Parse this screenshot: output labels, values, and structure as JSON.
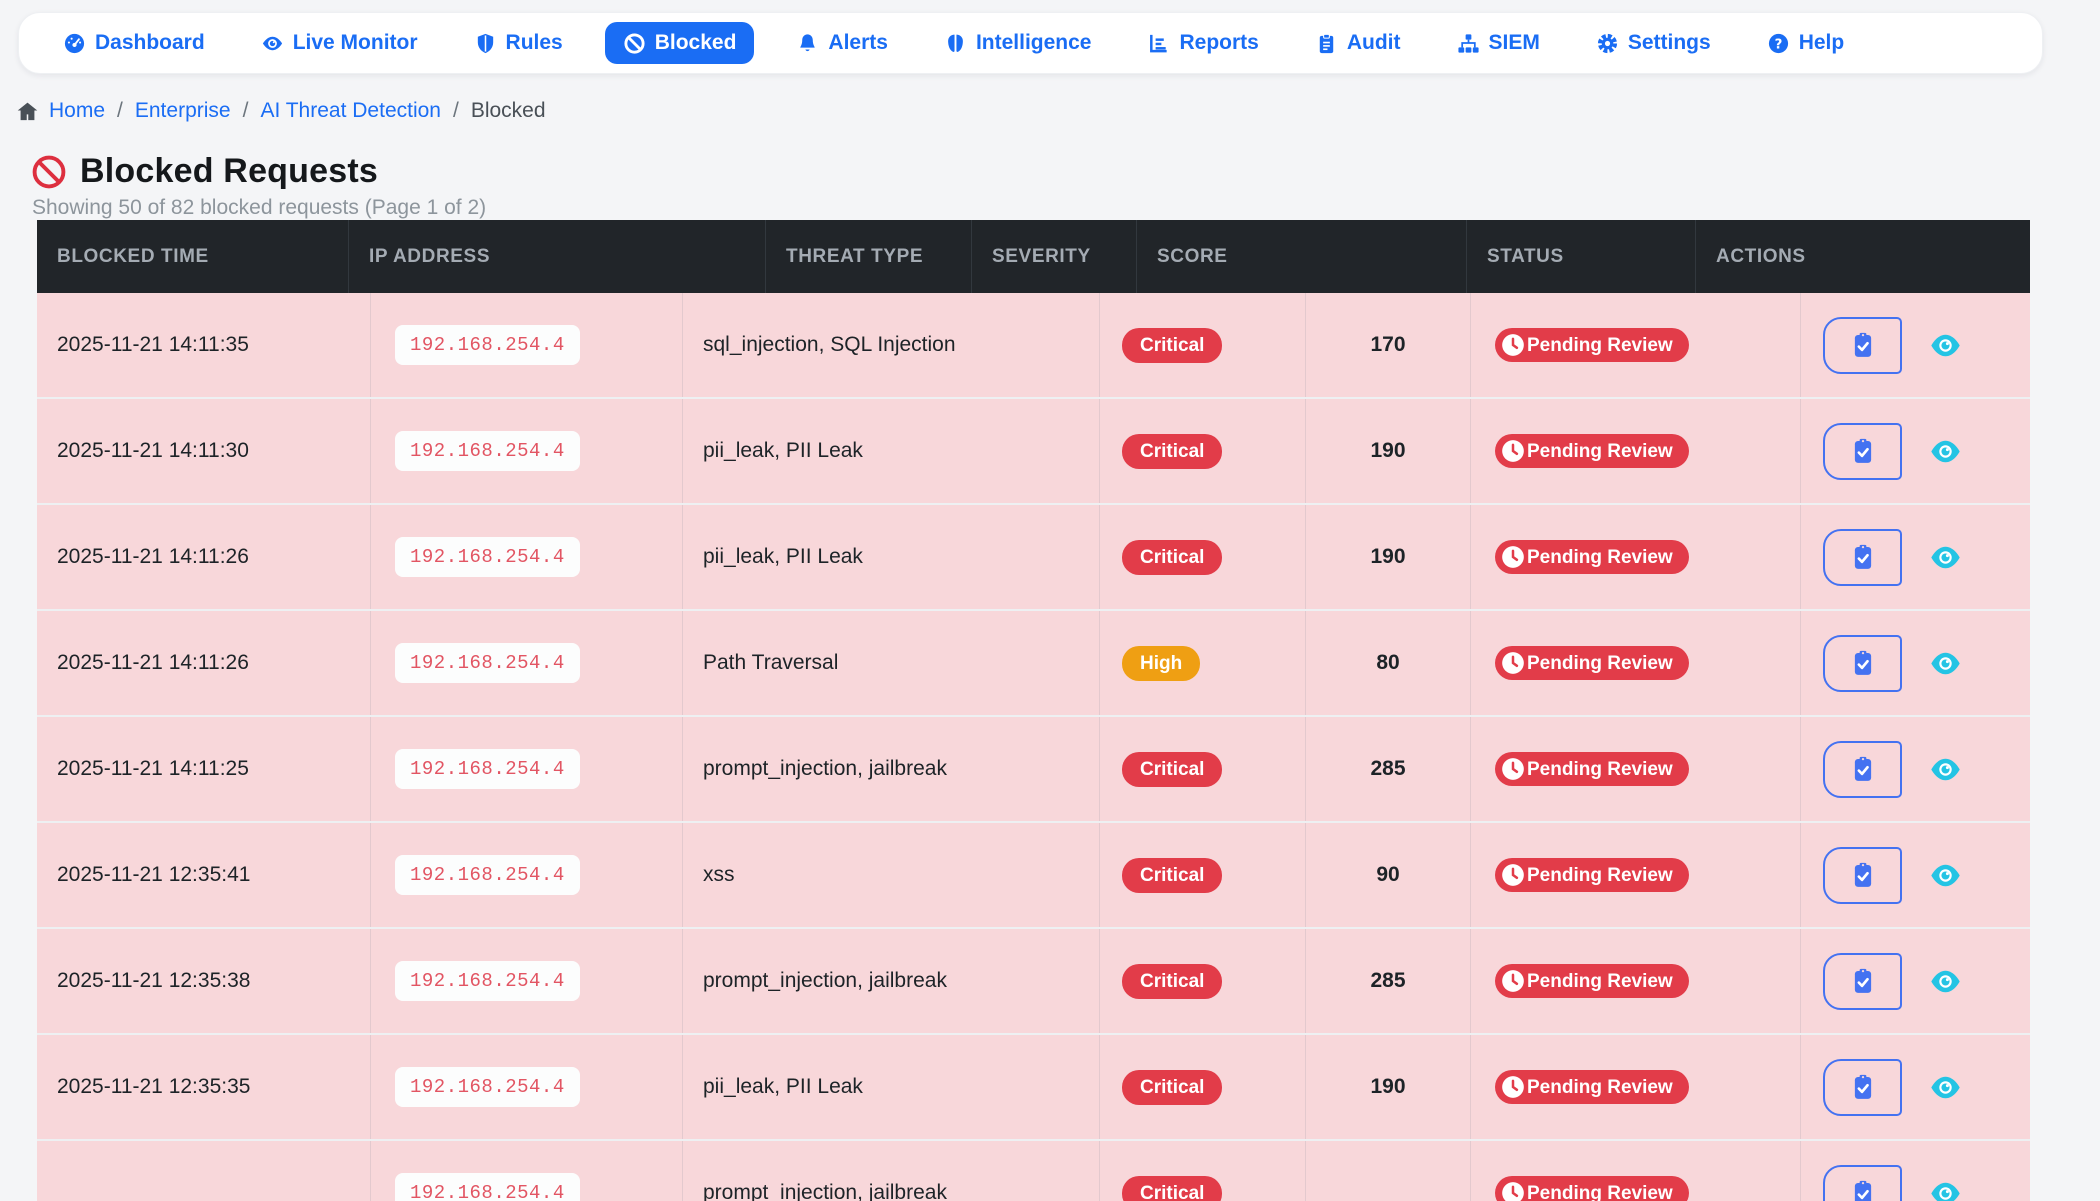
{
  "nav": {
    "items": [
      {
        "label": "Dashboard",
        "icon": "tachometer",
        "active": false
      },
      {
        "label": "Live Monitor",
        "icon": "eye",
        "active": false
      },
      {
        "label": "Rules",
        "icon": "shield",
        "active": false
      },
      {
        "label": "Blocked",
        "icon": "ban",
        "active": true
      },
      {
        "label": "Alerts",
        "icon": "bell",
        "active": false
      },
      {
        "label": "Intelligence",
        "icon": "brain",
        "active": false
      },
      {
        "label": "Reports",
        "icon": "chart",
        "active": false
      },
      {
        "label": "Audit",
        "icon": "clipboard",
        "active": false
      },
      {
        "label": "SIEM",
        "icon": "sitemap",
        "active": false
      },
      {
        "label": "Settings",
        "icon": "gear",
        "active": false
      },
      {
        "label": "Help",
        "icon": "question",
        "active": false
      }
    ]
  },
  "breadcrumb": {
    "separator": "/",
    "items": [
      {
        "label": "Home",
        "icon": "home",
        "link": true
      },
      {
        "label": "Enterprise",
        "link": true
      },
      {
        "label": "AI Threat Detection",
        "link": true
      },
      {
        "label": "Blocked",
        "link": false
      }
    ]
  },
  "page": {
    "title": "Blocked Requests",
    "subtitle": "Showing 50 of 82 blocked requests (Page 1 of 2)"
  },
  "table": {
    "columns": [
      "Blocked Time",
      "IP Address",
      "Threat Type",
      "Severity",
      "Score",
      "Status",
      "Actions"
    ],
    "rows": [
      {
        "time": "2025-11-21 14:11:35",
        "ip": "192.168.254.4",
        "threat": "sql_injection, SQL Injection",
        "severity": "Critical",
        "score": "170",
        "status": "Pending Review"
      },
      {
        "time": "2025-11-21 14:11:30",
        "ip": "192.168.254.4",
        "threat": "pii_leak, PII Leak",
        "severity": "Critical",
        "score": "190",
        "status": "Pending Review"
      },
      {
        "time": "2025-11-21 14:11:26",
        "ip": "192.168.254.4",
        "threat": "pii_leak, PII Leak",
        "severity": "Critical",
        "score": "190",
        "status": "Pending Review"
      },
      {
        "time": "2025-11-21 14:11:26",
        "ip": "192.168.254.4",
        "threat": "Path Traversal",
        "severity": "High",
        "score": "80",
        "status": "Pending Review"
      },
      {
        "time": "2025-11-21 14:11:25",
        "ip": "192.168.254.4",
        "threat": "prompt_injection, jailbreak",
        "severity": "Critical",
        "score": "285",
        "status": "Pending Review"
      },
      {
        "time": "2025-11-21 12:35:41",
        "ip": "192.168.254.4",
        "threat": "xss",
        "severity": "Critical",
        "score": "90",
        "status": "Pending Review"
      },
      {
        "time": "2025-11-21 12:35:38",
        "ip": "192.168.254.4",
        "threat": "prompt_injection, jailbreak",
        "severity": "Critical",
        "score": "285",
        "status": "Pending Review"
      },
      {
        "time": "2025-11-21 12:35:35",
        "ip": "192.168.254.4",
        "threat": "pii_leak, PII Leak",
        "severity": "Critical",
        "score": "190",
        "status": "Pending Review"
      },
      {
        "time": "",
        "ip": "192.168.254.4",
        "threat": "prompt_injection, jailbreak",
        "severity": "Critical",
        "score": "",
        "status": "Pending Review"
      }
    ]
  },
  "colors": {
    "accent_blue": "#1a6df4",
    "critical_red": "#e23c49",
    "high_orange": "#ef9f13",
    "row_pink": "#f8d7da",
    "header_dark": "#212529",
    "eye_cyan": "#24c4e4",
    "ip_text_red": "#e25563",
    "ban_red": "#dd2f3f"
  }
}
